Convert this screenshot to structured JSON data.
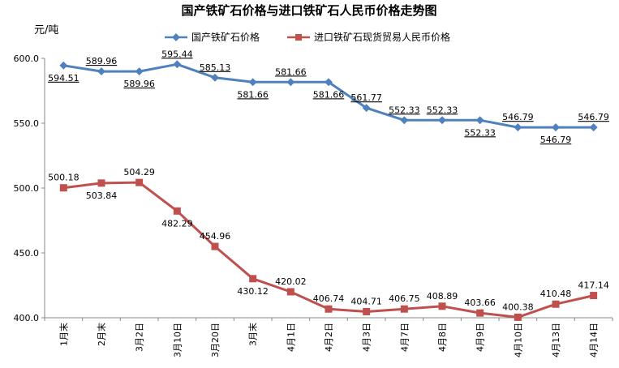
{
  "chart_data": {
    "type": "line",
    "title": "国产铁矿石价格与进口铁矿石人民币价格走势图",
    "ylabel": "元/吨",
    "xlabel": "",
    "ylim": [
      400,
      600
    ],
    "yticks": [
      "600.0",
      "550.0",
      "500.0",
      "450.0",
      "400.0"
    ],
    "categories": [
      "1月末",
      "2月末",
      "3月2日",
      "3月10日",
      "3月20日",
      "3月末",
      "4月1日",
      "4月2日",
      "4月3日",
      "4月7日",
      "4月8日",
      "4月9日",
      "4月10日",
      "4月13日",
      "4月14日"
    ],
    "series": [
      {
        "name": "国产铁矿石价格",
        "color": "#4F81BD",
        "marker": "diamond",
        "values": [
          594.51,
          589.96,
          589.96,
          595.44,
          585.13,
          581.66,
          581.66,
          581.66,
          561.77,
          552.33,
          552.33,
          552.33,
          546.79,
          546.79,
          546.79
        ],
        "labels": [
          "594.51",
          "589.96",
          "589.96",
          "595.44",
          "585.13",
          "581.66",
          "581.66",
          "581.66",
          "561.77",
          "552.33",
          "552.33",
          "552.33",
          "546.79",
          "546.79",
          "546.79"
        ]
      },
      {
        "name": "进口铁矿石现货贸易人民币价格",
        "color": "#C0504D",
        "marker": "square",
        "values": [
          500.18,
          503.84,
          504.29,
          482.29,
          454.96,
          430.12,
          420.02,
          406.74,
          404.71,
          406.75,
          408.89,
          403.66,
          400.38,
          410.48,
          417.14
        ],
        "labels": [
          "500.18",
          "503.84",
          "504.29",
          "482.29",
          "454.96",
          "430.12",
          "420.02",
          "406.74",
          "404.71",
          "406.75",
          "408.89",
          "403.66",
          "400.38",
          "410.48",
          "417.14"
        ]
      }
    ],
    "grid": false,
    "legend": "top-center"
  }
}
